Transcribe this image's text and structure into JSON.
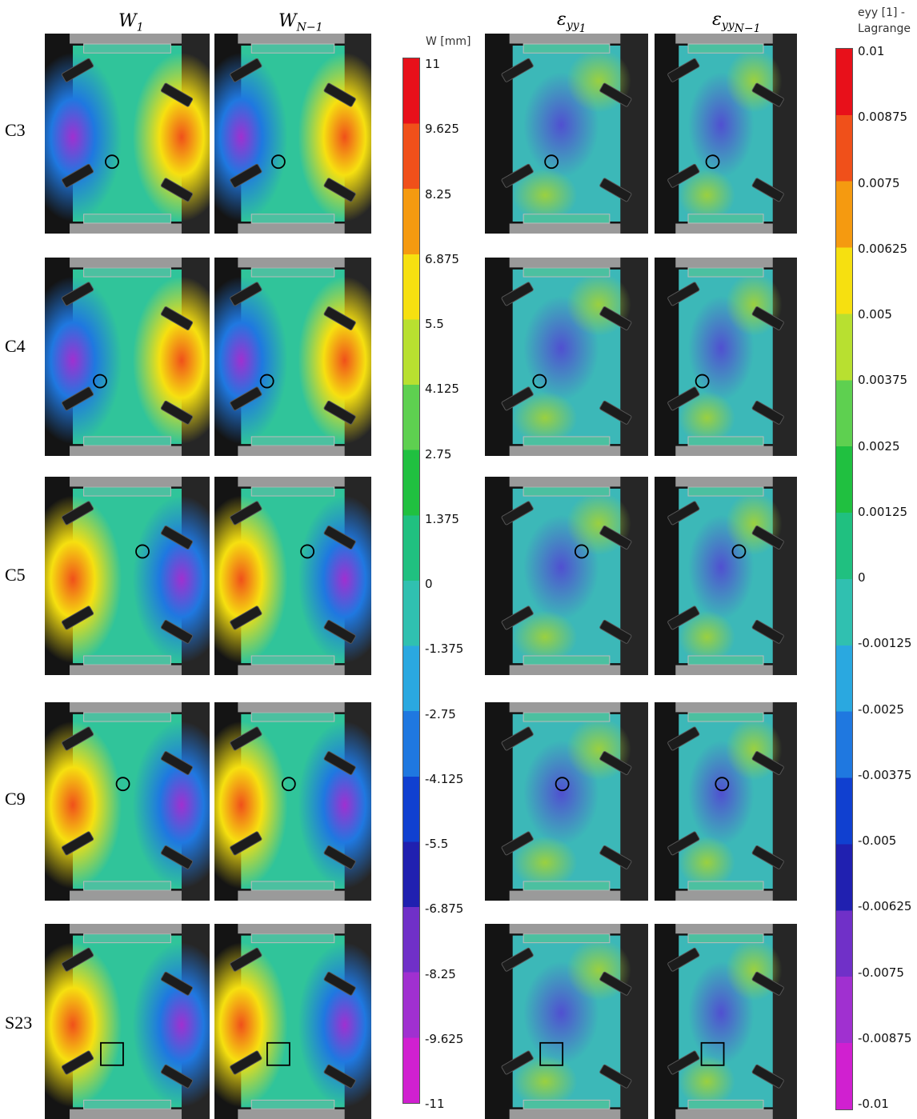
{
  "columns": {
    "w1": {
      "base": "W",
      "sub": "1"
    },
    "wn": {
      "base": "W",
      "sub": "N−1"
    },
    "e1": {
      "base": "ε",
      "sub": "yy",
      "subsub": "1"
    },
    "en": {
      "base": "ε",
      "sub": "yy",
      "subsub": "N−1"
    }
  },
  "rows": [
    "C3",
    "C4",
    "C5",
    "C9",
    "S23"
  ],
  "colorbar_w": {
    "title": "W [mm]",
    "ticks": [
      "11",
      "9.625",
      "8.25",
      "6.875",
      "5.5",
      "4.125",
      "2.75",
      "1.375",
      "0",
      "-1.375",
      "-2.75",
      "-4.125",
      "-5.5",
      "-6.875",
      "-8.25",
      "-9.625",
      "-11"
    ]
  },
  "colorbar_e": {
    "title_line1": "eyy [1] -",
    "title_line2": "Lagrange",
    "ticks": [
      "0.01",
      "0.00875",
      "0.0075",
      "0.00625",
      "0.005",
      "0.00375",
      "0.0025",
      "0.00125",
      "0",
      "-0.00125",
      "-0.0025",
      "-0.00375",
      "-0.005",
      "-0.00625",
      "-0.0075",
      "-0.00875",
      "-0.01"
    ]
  },
  "colormap": [
    "#e8101a",
    "#f0501a",
    "#f59a10",
    "#f6e010",
    "#b8e030",
    "#5ed050",
    "#20c040",
    "#20c080",
    "#30c0b0",
    "#2aa8e0",
    "#1f78e0",
    "#1040d0",
    "#2020b0",
    "#7030c8",
    "#a030d0",
    "#d020d0"
  ]
}
